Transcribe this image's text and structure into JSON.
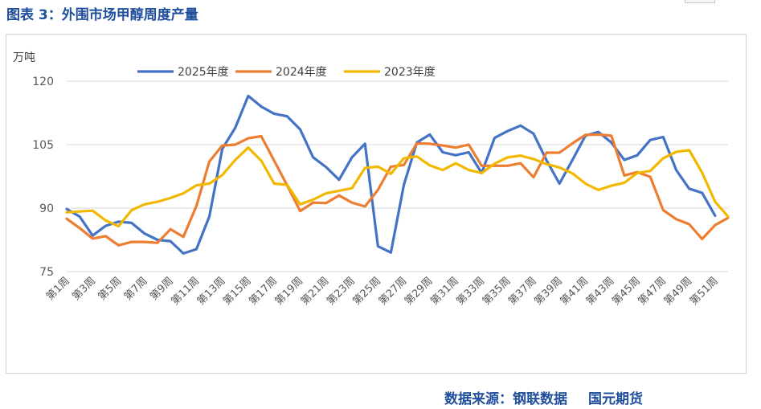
{
  "header": {
    "title": "图表 3：外围市场甲醇周度产量"
  },
  "footer": {
    "source_label": "数据来源：钢联数据",
    "brand": "国元期货"
  },
  "chart_data": {
    "type": "line",
    "ylabel": "万吨",
    "ylim": [
      75,
      120
    ],
    "yticks": [
      75,
      90,
      105,
      120
    ],
    "x": [
      1,
      2,
      3,
      4,
      5,
      6,
      7,
      8,
      9,
      10,
      11,
      12,
      13,
      14,
      15,
      16,
      17,
      18,
      19,
      20,
      21,
      22,
      23,
      24,
      25,
      26,
      27,
      28,
      29,
      30,
      31,
      32,
      33,
      34,
      35,
      36,
      37,
      38,
      39,
      40,
      41,
      42,
      43,
      44,
      45,
      46,
      47,
      48,
      49,
      50,
      51,
      52
    ],
    "xtick_labels": [
      "第1周",
      "第3周",
      "第5周",
      "第7周",
      "第9周",
      "第11周",
      "第13周",
      "第15周",
      "第17周",
      "第19周",
      "第21周",
      "第23周",
      "第25周",
      "第27周",
      "第29周",
      "第31周",
      "第33周",
      "第35周",
      "第37周",
      "第39周",
      "第41周",
      "第43周",
      "第45周",
      "第47周",
      "第49周",
      "第51周"
    ],
    "grid": true,
    "legend_position": "top",
    "series": [
      {
        "name": "2025年度",
        "color": "#4472c4",
        "values": [
          89.8,
          88,
          83.5,
          85.8,
          86.8,
          86.5,
          84,
          82.5,
          82.2,
          79.3,
          80.3,
          88,
          104,
          109,
          116.5,
          114,
          112.3,
          111.7,
          108.6,
          102,
          99.7,
          96.7,
          102,
          105.2,
          81,
          79.5,
          95.5,
          105.5,
          107.4,
          103.2,
          102.5,
          103.2,
          98.3,
          106.6,
          108.2,
          109.5,
          107.6,
          101.3,
          95.8,
          101.4,
          107.1,
          108,
          105.5,
          101.4,
          102.5,
          106.1,
          106.8,
          99,
          94.6,
          93.6,
          88.2,
          null
        ]
      },
      {
        "name": "2024年度",
        "color": "#ed7d31",
        "values": [
          87.5,
          85.3,
          82.8,
          83.4,
          81.2,
          82,
          82,
          81.8,
          85,
          83.2,
          90.5,
          101,
          104.8,
          105,
          106.5,
          107,
          101.2,
          95.4,
          89.3,
          91.3,
          91.2,
          93,
          91.3,
          90.4,
          94.3,
          99.8,
          100.2,
          105.3,
          105.2,
          104.8,
          104.3,
          105,
          100,
          100,
          100,
          100.6,
          97.3,
          103.1,
          103.1,
          105.3,
          107.3,
          107.4,
          107.1,
          97.7,
          98.5,
          97.4,
          89.5,
          87.4,
          86.2,
          82.7,
          86,
          87.7
        ]
      },
      {
        "name": "2023年度",
        "color": "#f2b800",
        "values": [
          89,
          89.2,
          89.4,
          87.1,
          85.7,
          89.5,
          90.9,
          91.5,
          92.4,
          93.5,
          95.4,
          95.8,
          97.8,
          101.4,
          104.3,
          101.2,
          95.8,
          95.5,
          90.9,
          92,
          93.5,
          94.1,
          94.7,
          99.5,
          99.8,
          98.1,
          101.8,
          102.2,
          100.1,
          99,
          100.6,
          99,
          98.3,
          100.5,
          102,
          102.4,
          101.6,
          100.4,
          99.6,
          98.2,
          95.8,
          94.3,
          95.3,
          96,
          98.3,
          98.8,
          101.8,
          103.3,
          103.7,
          98.4,
          91.5,
          88
        ]
      }
    ]
  }
}
